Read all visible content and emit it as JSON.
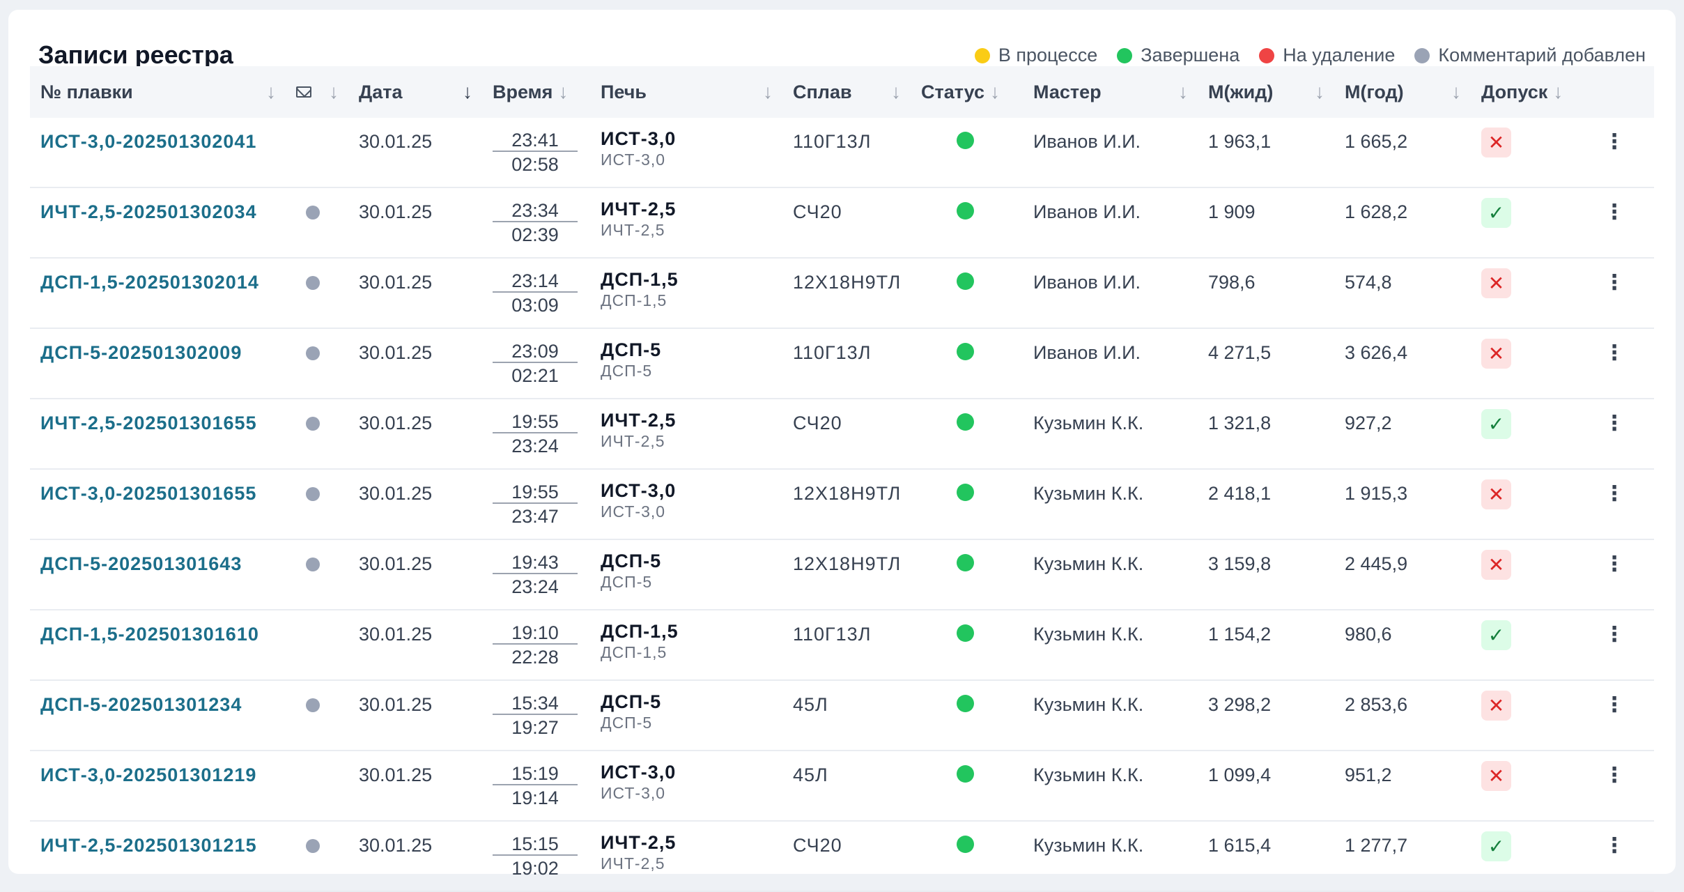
{
  "header": {
    "title": "Записи реестра"
  },
  "legend": [
    {
      "label": "В процессе",
      "color": "#facc15"
    },
    {
      "label": "Завершена",
      "color": "#22c55e"
    },
    {
      "label": "На удаление",
      "color": "#ef4444"
    },
    {
      "label": "Комментарий добавлен",
      "color": "#9aa3b5"
    }
  ],
  "columns": {
    "plavka": "№ плавки",
    "date": "Дата",
    "time": "Время",
    "pech": "Печь",
    "splav": "Сплав",
    "status": "Статус",
    "master": "Мастер",
    "mzhid": "М(жид)",
    "mgod": "М(год)",
    "dopusk": "Допуск"
  },
  "icons": {
    "sort": "arrow-down-icon",
    "mail": "mail-icon",
    "admit": "check-icon",
    "deny": "x-icon",
    "menu": "more-vertical-icon"
  },
  "rows": [
    {
      "id": "ИСТ-3,0-202501302041",
      "comment": false,
      "date": "30.01.25",
      "time_start": "23:41",
      "time_end": "02:58",
      "pech": "ИСТ-3,0",
      "pech_sub": "ИСТ-3,0",
      "splav": "110Г13Л",
      "master": "Иванов И.И.",
      "mzhid": "1 963,1",
      "mgod": "1 665,2",
      "dopusk": false
    },
    {
      "id": "ИЧТ-2,5-202501302034",
      "comment": true,
      "date": "30.01.25",
      "time_start": "23:34",
      "time_end": "02:39",
      "pech": "ИЧТ-2,5",
      "pech_sub": "ИЧТ-2,5",
      "splav": "СЧ20",
      "master": "Иванов И.И.",
      "mzhid": "1 909",
      "mgod": "1 628,2",
      "dopusk": true
    },
    {
      "id": "ДСП-1,5-202501302014",
      "comment": true,
      "date": "30.01.25",
      "time_start": "23:14",
      "time_end": "03:09",
      "pech": "ДСП-1,5",
      "pech_sub": "ДСП-1,5",
      "splav": "12Х18Н9ТЛ",
      "master": "Иванов И.И.",
      "mzhid": "798,6",
      "mgod": "574,8",
      "dopusk": false
    },
    {
      "id": "ДСП-5-202501302009",
      "comment": true,
      "date": "30.01.25",
      "time_start": "23:09",
      "time_end": "02:21",
      "pech": "ДСП-5",
      "pech_sub": "ДСП-5",
      "splav": "110Г13Л",
      "master": "Иванов И.И.",
      "mzhid": "4 271,5",
      "mgod": "3 626,4",
      "dopusk": false
    },
    {
      "id": "ИЧТ-2,5-202501301655",
      "comment": true,
      "date": "30.01.25",
      "time_start": "19:55",
      "time_end": "23:24",
      "pech": "ИЧТ-2,5",
      "pech_sub": "ИЧТ-2,5",
      "splav": "СЧ20",
      "master": "Кузьмин К.К.",
      "mzhid": "1 321,8",
      "mgod": "927,2",
      "dopusk": true
    },
    {
      "id": "ИСТ-3,0-202501301655",
      "comment": true,
      "date": "30.01.25",
      "time_start": "19:55",
      "time_end": "23:47",
      "pech": "ИСТ-3,0",
      "pech_sub": "ИСТ-3,0",
      "splav": "12Х18Н9ТЛ",
      "master": "Кузьмин К.К.",
      "mzhid": "2 418,1",
      "mgod": "1 915,3",
      "dopusk": false
    },
    {
      "id": "ДСП-5-202501301643",
      "comment": true,
      "date": "30.01.25",
      "time_start": "19:43",
      "time_end": "23:24",
      "pech": "ДСП-5",
      "pech_sub": "ДСП-5",
      "splav": "12Х18Н9ТЛ",
      "master": "Кузьмин К.К.",
      "mzhid": "3 159,8",
      "mgod": "2 445,9",
      "dopusk": false
    },
    {
      "id": "ДСП-1,5-202501301610",
      "comment": false,
      "date": "30.01.25",
      "time_start": "19:10",
      "time_end": "22:28",
      "pech": "ДСП-1,5",
      "pech_sub": "ДСП-1,5",
      "splav": "110Г13Л",
      "master": "Кузьмин К.К.",
      "mzhid": "1 154,2",
      "mgod": "980,6",
      "dopusk": true
    },
    {
      "id": "ДСП-5-202501301234",
      "comment": true,
      "date": "30.01.25",
      "time_start": "15:34",
      "time_end": "19:27",
      "pech": "ДСП-5",
      "pech_sub": "ДСП-5",
      "splav": "45Л",
      "master": "Кузьмин К.К.",
      "mzhid": "3 298,2",
      "mgod": "2 853,6",
      "dopusk": false
    },
    {
      "id": "ИСТ-3,0-202501301219",
      "comment": false,
      "date": "30.01.25",
      "time_start": "15:19",
      "time_end": "19:14",
      "pech": "ИСТ-3,0",
      "pech_sub": "ИСТ-3,0",
      "splav": "45Л",
      "master": "Кузьмин К.К.",
      "mzhid": "1 099,4",
      "mgod": "951,2",
      "dopusk": false
    },
    {
      "id": "ИЧТ-2,5-202501301215",
      "comment": true,
      "date": "30.01.25",
      "time_start": "15:15",
      "time_end": "19:02",
      "pech": "ИЧТ-2,5",
      "pech_sub": "ИЧТ-2,5",
      "splav": "СЧ20",
      "master": "Кузьмин К.К.",
      "mzhid": "1 615,4",
      "mgod": "1 277,7",
      "dopusk": true
    }
  ]
}
